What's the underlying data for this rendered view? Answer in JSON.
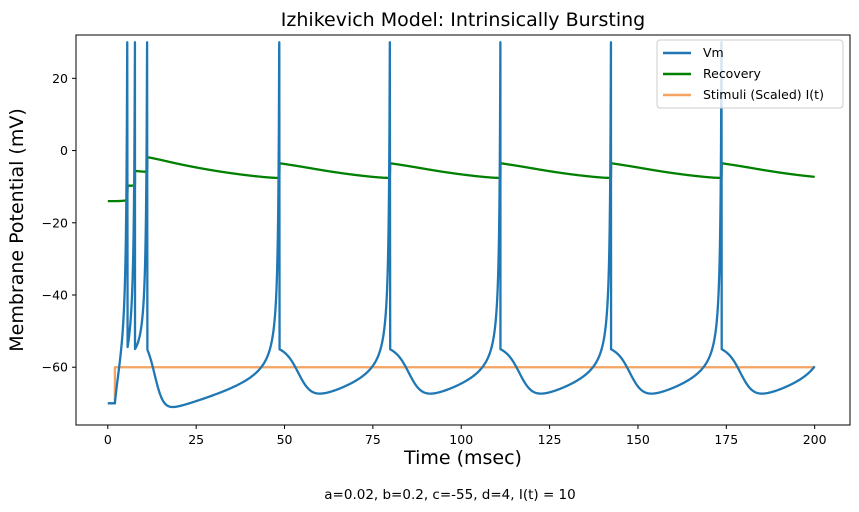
{
  "chart_data": {
    "type": "line",
    "title": "Izhikevich Model: Intrinsically Bursting",
    "xlabel": "Time (msec)",
    "ylabel": "Membrane Potential (mV)",
    "caption": "a=0.02, b=0.2, c=-55, d=4, I(t) = 10",
    "xlim": [
      -9,
      210
    ],
    "ylim": [
      -76,
      32
    ],
    "xticks": [
      0,
      25,
      50,
      75,
      100,
      125,
      150,
      175,
      200
    ],
    "yticks": [
      -60,
      -40,
      -20,
      0,
      20
    ],
    "grid": false,
    "legend_position": "top-right",
    "parameters": {
      "a": 0.02,
      "b": 0.2,
      "c": -55,
      "d": 4,
      "I": 10,
      "t_end": 200,
      "I_onset": 2
    },
    "series": [
      {
        "name": "Vm",
        "color": "#1f77b4"
      },
      {
        "name": "Recovery",
        "color": "#008000"
      },
      {
        "name": "Stimuli (Scaled) I(t)",
        "color": "#f4a460",
        "x": [
          0,
          2,
          2,
          200
        ],
        "y": [
          -70,
          -70,
          -60,
          -60
        ]
      }
    ]
  }
}
